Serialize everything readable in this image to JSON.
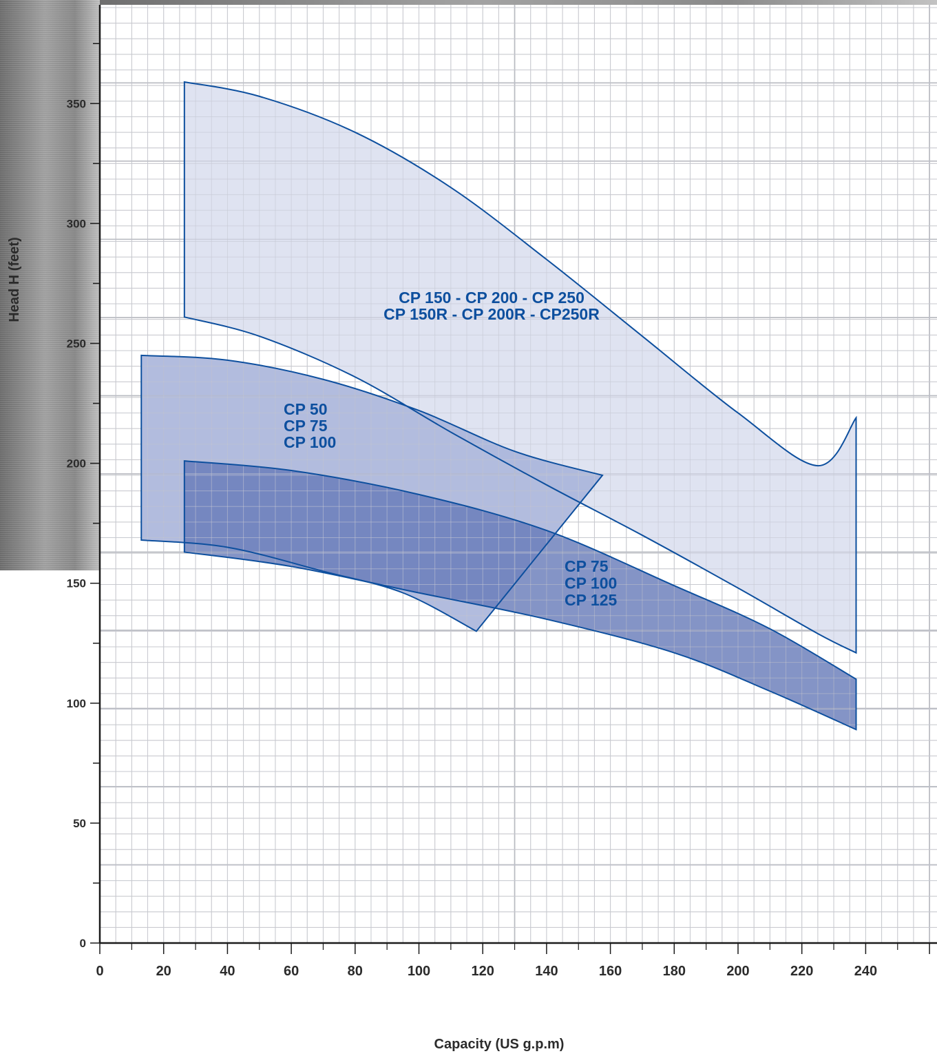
{
  "chart_data": {
    "type": "area",
    "xlabel": "Capacity (US g.p.m)",
    "ylabel": "Head H (feet)",
    "xlim": [
      0,
      260
    ],
    "ylim": [
      0,
      392
    ],
    "x_ticks": [
      0,
      20,
      40,
      60,
      80,
      100,
      120,
      140,
      160,
      180,
      200,
      220,
      240
    ],
    "y_ticks": [
      0,
      50,
      100,
      150,
      200,
      250,
      300,
      350
    ],
    "grid": true,
    "series": [
      {
        "labels": [
          "CP 150 - CP 200 - CP 250",
          "CP 150R - CP 200R - CP250R"
        ],
        "fill": "#dde1f0",
        "fill_opacity": 0.93,
        "stroke": "#0d4f9e",
        "upper": [
          [
            26.5,
            359
          ],
          [
            50,
            353
          ],
          [
            80,
            338
          ],
          [
            110,
            315
          ],
          [
            140,
            285
          ],
          [
            170,
            253
          ],
          [
            200,
            221
          ],
          [
            225,
            199
          ],
          [
            237,
            186
          ],
          [
            237,
            219
          ]
        ],
        "lower_note": "",
        "lower": [
          [
            26.5,
            261
          ],
          [
            50,
            253
          ],
          [
            80,
            236
          ],
          [
            110,
            213
          ],
          [
            140,
            191
          ],
          [
            170,
            170
          ],
          [
            200,
            148
          ],
          [
            225,
            129
          ],
          [
            237,
            121
          ]
        ]
      },
      {
        "labels": [
          "CP 50",
          "CP 75",
          "CP 100"
        ],
        "fill": "#a7b3d9",
        "fill_opacity": 0.88,
        "stroke": "#0d4f9e",
        "upper": [
          [
            13,
            245
          ],
          [
            40,
            243
          ],
          [
            70,
            235
          ],
          [
            100,
            222
          ],
          [
            130,
            205
          ],
          [
            157.5,
            195
          ]
        ],
        "lower": [
          [
            13,
            168
          ],
          [
            40,
            165
          ],
          [
            70,
            155
          ],
          [
            95,
            146
          ],
          [
            118,
            130
          ]
        ]
      },
      {
        "labels": [
          "CP 75",
          "CP 100",
          "CP 125"
        ],
        "fill": "#6579b8",
        "fill_opacity": 0.8,
        "stroke": "#0d4f9e",
        "upper": [
          [
            26.5,
            201
          ],
          [
            60,
            197
          ],
          [
            100,
            187
          ],
          [
            140,
            172
          ],
          [
            180,
            149
          ],
          [
            210,
            131
          ],
          [
            237,
            110
          ]
        ],
        "lower": [
          [
            26.5,
            163
          ],
          [
            60,
            157
          ],
          [
            100,
            146
          ],
          [
            140,
            135
          ],
          [
            180,
            121
          ],
          [
            210,
            105
          ],
          [
            237,
            89
          ]
        ]
      }
    ]
  }
}
